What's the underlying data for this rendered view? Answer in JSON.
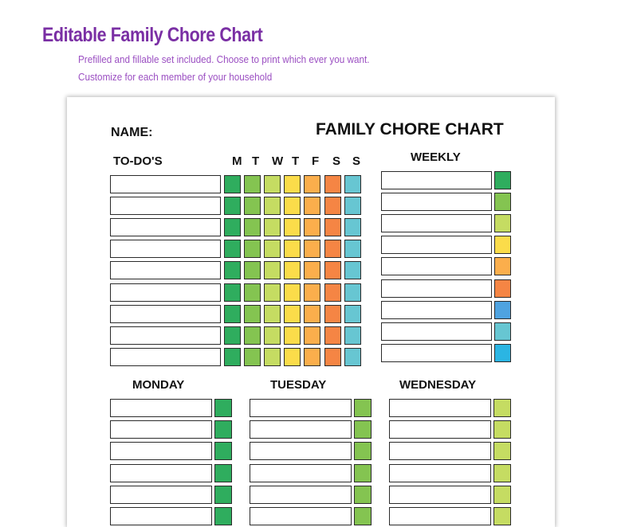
{
  "header": {
    "title": "Editable Family Chore Chart",
    "subtitle_line1": "Prefilled and fillable set included. Choose to print which ever you want.",
    "subtitle_line2": "Customize for each member of your household"
  },
  "sheet": {
    "name_label": "NAME:",
    "chart_title": "FAMILY CHORE CHART",
    "todo_label": "TO-DO'S",
    "day_letters": [
      "M",
      "T",
      "W",
      "T",
      "F",
      "S",
      "S"
    ],
    "day_colors": [
      "#2fad5e",
      "#84c451",
      "#c5dc62",
      "#fbdc4a",
      "#fbae4c",
      "#f58544",
      "#67c6d2"
    ],
    "todo_row_count": 9,
    "weekly_label": "WEEKLY",
    "weekly_colors": [
      "#2fad5e",
      "#84c451",
      "#c5dc62",
      "#fbdc4a",
      "#fbae4c",
      "#f58544",
      "#4fa3e0",
      "#67c6d2",
      "#2bb5e3"
    ],
    "day_sections": [
      {
        "label": "MONDAY",
        "color": "#2fad5e"
      },
      {
        "label": "TUESDAY",
        "color": "#84c451"
      },
      {
        "label": "WEDNESDAY",
        "color": "#c5dc62"
      }
    ]
  }
}
